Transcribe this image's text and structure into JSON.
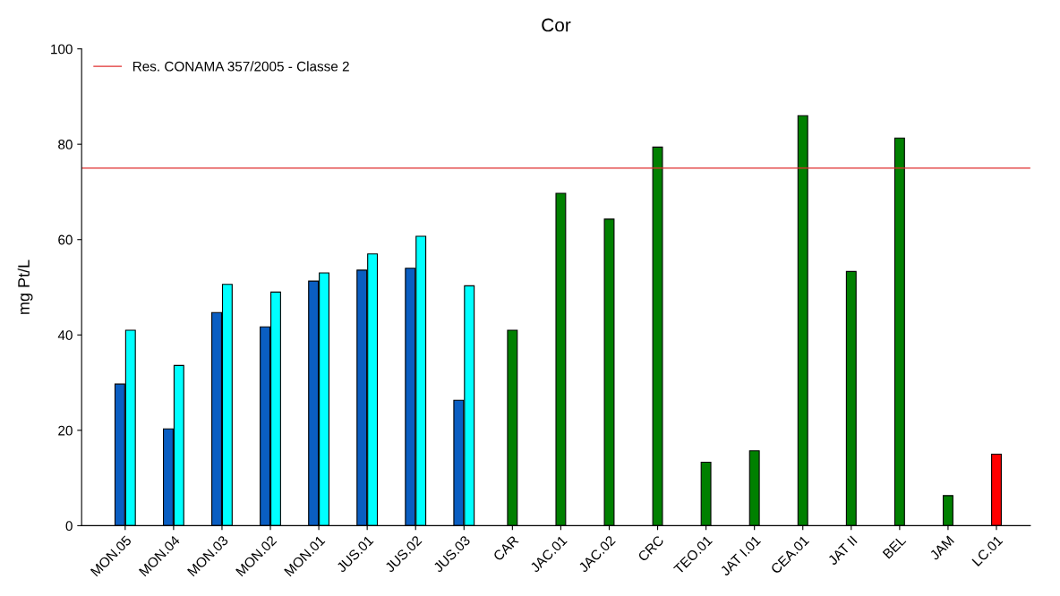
{
  "chart_data": {
    "type": "bar",
    "title": "Cor",
    "ylabel": "mg Pt/L",
    "categories": [
      "MON.05",
      "MON.04",
      "MON.03",
      "MON.02",
      "MON.01",
      "JUS.01",
      "JUS.02",
      "JUS.03",
      "CAR",
      "JAC.01",
      "JAC.02",
      "CRC",
      "TEO.01",
      "JAT I.01",
      "CEA.01",
      "JAT II",
      "BEL",
      "JAM",
      "LC.01"
    ],
    "series": [
      {
        "color": "#0a5ec2",
        "values": [
          29.7,
          20.3,
          44.7,
          41.7,
          51.3,
          53.6,
          54.0,
          26.3,
          null,
          null,
          null,
          null,
          null,
          null,
          null,
          null,
          null,
          null,
          null
        ]
      },
      {
        "color": "#00ffff",
        "values": [
          41.0,
          33.6,
          50.6,
          49.0,
          53.0,
          57.0,
          60.7,
          50.3,
          null,
          null,
          null,
          null,
          null,
          null,
          null,
          null,
          null,
          null,
          null
        ]
      },
      {
        "color": "#008000",
        "values": [
          null,
          null,
          null,
          null,
          null,
          null,
          null,
          null,
          41.0,
          69.7,
          64.3,
          79.4,
          13.3,
          15.7,
          86.0,
          53.3,
          81.3,
          6.3,
          null
        ]
      },
      {
        "color": "#ff0000",
        "values": [
          null,
          null,
          null,
          null,
          null,
          null,
          null,
          null,
          null,
          null,
          null,
          null,
          null,
          null,
          null,
          null,
          null,
          null,
          15.0
        ]
      }
    ],
    "ylim": [
      0,
      100
    ],
    "yticks": [
      0,
      20,
      40,
      60,
      80,
      100
    ],
    "ref_lines": [
      {
        "axis": "y",
        "value": 75,
        "label": "Res. CONAMA 357/2005 - Classe 2",
        "color": "#e03030",
        "line_style": "solid"
      }
    ],
    "legend": "top left",
    "grid": false
  }
}
